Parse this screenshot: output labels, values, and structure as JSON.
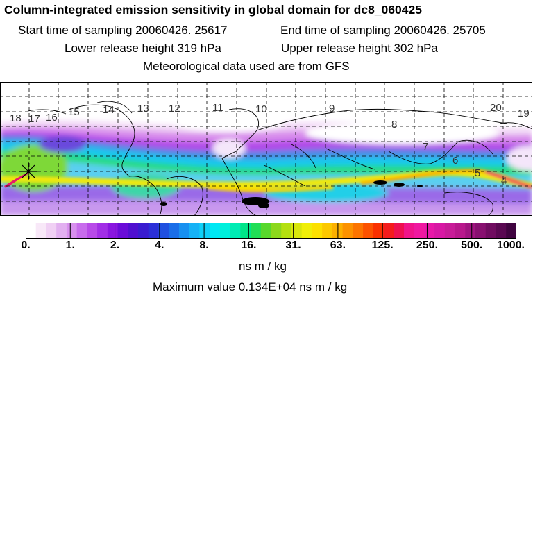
{
  "header": {
    "title": "Column-integrated emission sensitivity in global domain for dc8_060425",
    "start_time": "Start time of sampling 20060426. 25617",
    "end_time": "End time of sampling 20060426. 25705",
    "lower_release": "Lower release height  319 hPa",
    "upper_release": "Upper release height  302 hPa",
    "met_data": "Meteorological data used are from GFS"
  },
  "map": {
    "track_labels": [
      "18",
      "17",
      "16",
      "15",
      "14",
      "13",
      "12",
      "11",
      "10",
      "9",
      "8",
      "7",
      "6",
      "5",
      "4",
      "20",
      "19"
    ],
    "release_marker": "star-marker-icon"
  },
  "colorbar": {
    "tick_labels": [
      "0.",
      "1.",
      "2.",
      "4.",
      "8.",
      "16.",
      "31.",
      "63.",
      "125.",
      "250.",
      "500.",
      "1000."
    ],
    "colors": [
      "#ffffff",
      "#f8e8f8",
      "#f0d0f4",
      "#e2b0f0",
      "#d890ee",
      "#c86cec",
      "#b84ae8",
      "#a22ee6",
      "#8a16e0",
      "#6a0cd8",
      "#5010d0",
      "#3a1cd0",
      "#2c30d8",
      "#2050e0",
      "#1a6ee8",
      "#1890f0",
      "#16b2f6",
      "#10d0f8",
      "#00e8f4",
      "#00f0dc",
      "#00ecb4",
      "#00e488",
      "#20de56",
      "#58d82c",
      "#8cd81c",
      "#b4e010",
      "#d8e60c",
      "#f0ee08",
      "#fce000",
      "#fcc800",
      "#fcb000",
      "#fc9200",
      "#fc7400",
      "#fc5200",
      "#fa3000",
      "#f41c1c",
      "#ee1050",
      "#f0148a",
      "#f018a0",
      "#e818a8",
      "#d818a4",
      "#c81c98",
      "#b8188c",
      "#a01480",
      "#881070",
      "#700c60",
      "#5a0852",
      "#400440"
    ],
    "units": "ns m / kg",
    "maximum": "Maximum value  0.134E+04 ns m / kg"
  }
}
